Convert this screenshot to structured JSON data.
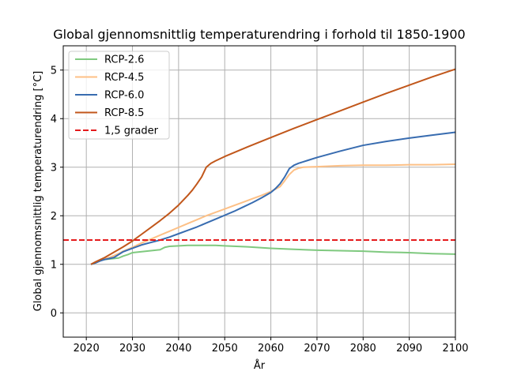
{
  "chart_data": {
    "type": "line",
    "title": "Global gjennomsnittlig temperaturendring i forhold til 1850-1900",
    "xlabel": "År",
    "ylabel": "Global gjennomsnittlig temperaturendring [°C]",
    "xlim": [
      2015,
      2100
    ],
    "ylim": [
      -0.5,
      5.5
    ],
    "xticks": [
      2020,
      2030,
      2040,
      2050,
      2060,
      2070,
      2080,
      2090,
      2100
    ],
    "yticks": [
      0,
      1,
      2,
      3,
      4,
      5
    ],
    "grid": true,
    "legend_position": "top-left",
    "series": [
      {
        "name": "RCP-2.6",
        "color": "#7fc97f",
        "style": "solid",
        "x": [
          2021,
          2022,
          2023,
          2024,
          2025,
          2026,
          2027,
          2028,
          2029,
          2030,
          2032,
          2034,
          2036,
          2037,
          2038,
          2040,
          2042,
          2045,
          2048,
          2050,
          2055,
          2060,
          2065,
          2070,
          2075,
          2080,
          2085,
          2090,
          2095,
          2100
        ],
        "y": [
          1.0,
          1.03,
          1.08,
          1.1,
          1.11,
          1.12,
          1.13,
          1.17,
          1.2,
          1.24,
          1.26,
          1.28,
          1.3,
          1.35,
          1.37,
          1.38,
          1.39,
          1.39,
          1.39,
          1.38,
          1.36,
          1.33,
          1.31,
          1.29,
          1.28,
          1.27,
          1.25,
          1.24,
          1.22,
          1.21
        ]
      },
      {
        "name": "RCP-4.5",
        "color": "#fdc086",
        "style": "solid",
        "x": [
          2021,
          2022,
          2023,
          2024,
          2025,
          2026,
          2027,
          2028,
          2030,
          2032,
          2034,
          2036,
          2038,
          2040,
          2042,
          2044,
          2046,
          2048,
          2050,
          2052,
          2054,
          2056,
          2058,
          2060,
          2062,
          2063,
          2064,
          2065,
          2066,
          2067,
          2070,
          2075,
          2080,
          2085,
          2090,
          2095,
          2100
        ],
        "y": [
          1.0,
          1.04,
          1.08,
          1.11,
          1.14,
          1.18,
          1.22,
          1.27,
          1.35,
          1.44,
          1.52,
          1.6,
          1.68,
          1.76,
          1.84,
          1.92,
          2.0,
          2.07,
          2.14,
          2.21,
          2.28,
          2.35,
          2.42,
          2.5,
          2.6,
          2.72,
          2.85,
          2.94,
          2.98,
          3.0,
          3.01,
          3.03,
          3.04,
          3.04,
          3.05,
          3.05,
          3.06
        ]
      },
      {
        "name": "RCP-6.0",
        "color": "#386cb0",
        "style": "solid",
        "x": [
          2021,
          2022,
          2023,
          2024,
          2025,
          2026,
          2027,
          2028,
          2030,
          2032,
          2034,
          2036,
          2038,
          2040,
          2042,
          2044,
          2046,
          2048,
          2050,
          2052,
          2054,
          2056,
          2058,
          2060,
          2061,
          2062,
          2063,
          2064,
          2065,
          2066,
          2068,
          2070,
          2075,
          2080,
          2085,
          2090,
          2095,
          2100
        ],
        "y": [
          1.0,
          1.03,
          1.07,
          1.1,
          1.12,
          1.14,
          1.2,
          1.26,
          1.33,
          1.4,
          1.45,
          1.5,
          1.56,
          1.63,
          1.7,
          1.77,
          1.85,
          1.93,
          2.01,
          2.09,
          2.18,
          2.27,
          2.37,
          2.48,
          2.56,
          2.66,
          2.8,
          2.97,
          3.04,
          3.08,
          3.14,
          3.2,
          3.33,
          3.45,
          3.53,
          3.6,
          3.66,
          3.72
        ]
      },
      {
        "name": "RCP-8.5",
        "color": "#c1571b",
        "style": "solid",
        "x": [
          2021,
          2022,
          2024,
          2026,
          2028,
          2030,
          2032,
          2034,
          2036,
          2038,
          2040,
          2042,
          2043,
          2044,
          2045,
          2046,
          2047,
          2048,
          2050,
          2055,
          2060,
          2065,
          2070,
          2075,
          2080,
          2085,
          2090,
          2095,
          2100
        ],
        "y": [
          1.0,
          1.05,
          1.14,
          1.25,
          1.36,
          1.48,
          1.62,
          1.76,
          1.9,
          2.05,
          2.22,
          2.42,
          2.53,
          2.66,
          2.8,
          3.0,
          3.08,
          3.13,
          3.22,
          3.42,
          3.61,
          3.8,
          3.98,
          4.16,
          4.34,
          4.52,
          4.69,
          4.86,
          5.02
        ]
      },
      {
        "name": "1,5 grader",
        "color": "#e41a1c",
        "style": "dashed",
        "x": [
          2015,
          2100
        ],
        "y": [
          1.5,
          1.5
        ]
      }
    ]
  }
}
